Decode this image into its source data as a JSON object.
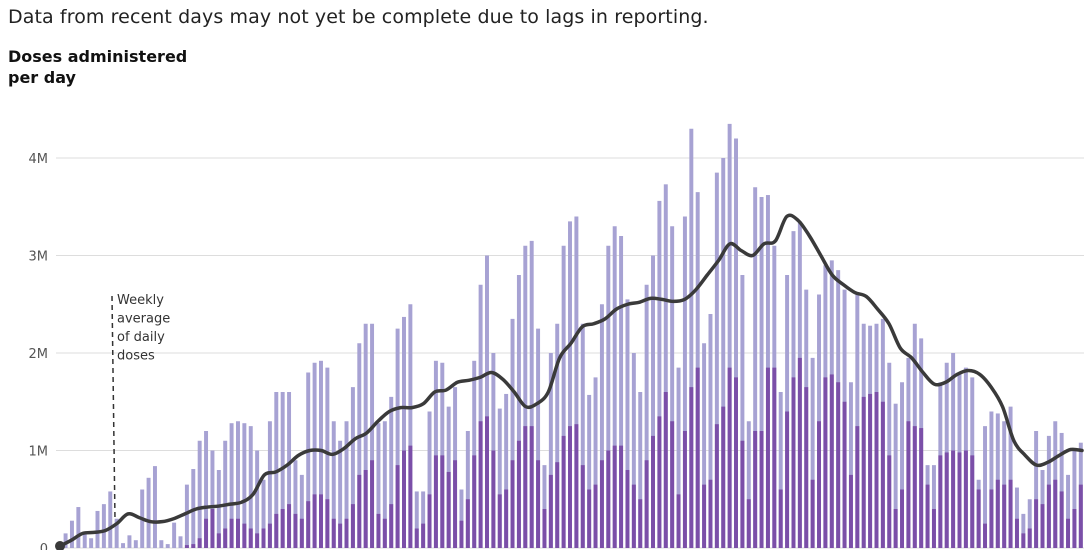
{
  "note": "Data from recent days may not yet be complete due to lags in reporting.",
  "chart_data": {
    "type": "bar",
    "ylabel": "Doses administered per day",
    "ylim": [
      0,
      4500000
    ],
    "y_ticks": [
      {
        "value": 0,
        "label": "0"
      },
      {
        "value": 1000000,
        "label": "1M"
      },
      {
        "value": 2000000,
        "label": "2M"
      },
      {
        "value": 3000000,
        "label": "3M"
      },
      {
        "value": 4000000,
        "label": "4M"
      }
    ],
    "grid": true,
    "colors": {
      "total": "#a7a2d3",
      "second": "#7b4fa8",
      "line": "#3a3a3a",
      "grid": "#dddddd"
    },
    "annotation": "Weekly average of daily doses",
    "series": [
      {
        "kind": "bar",
        "values": [
          50000,
          150000,
          280000,
          420000,
          150000,
          100000,
          380000,
          450000,
          580000,
          300000,
          50000,
          130000,
          80000,
          600000,
          720000,
          840000,
          80000,
          40000,
          260000,
          120000,
          650000,
          810000,
          1100000,
          1200000,
          1000000,
          800000,
          1100000,
          1280000,
          1300000,
          1280000,
          1250000,
          1000000,
          700000,
          1300000,
          1600000,
          1600000,
          1600000,
          900000,
          750000,
          1800000,
          1900000,
          1920000,
          1850000,
          1300000,
          1100000,
          1300000,
          1650000,
          2100000,
          2300000,
          2300000,
          1280000,
          1300000,
          1550000,
          2250000,
          2370000,
          2500000,
          580000,
          580000,
          1400000,
          1920000,
          1900000,
          1450000,
          1650000,
          600000,
          1200000,
          1920000,
          2700000,
          3000000,
          2000000,
          1430000,
          1580000,
          2350000,
          2800000,
          3100000,
          3150000,
          2250000,
          850000,
          2000000,
          2300000,
          3100000,
          3350000,
          3400000,
          2300000,
          1570000,
          1750000,
          2500000,
          3100000,
          3300000,
          3200000,
          2550000,
          2000000,
          1600000,
          2700000,
          3000000,
          3560000,
          3730000,
          3300000,
          1850000,
          3400000,
          4300000,
          3650000,
          2100000,
          2400000,
          3850000,
          4000000,
          4350000,
          4200000,
          2800000,
          1300000,
          3700000,
          3600000,
          3620000,
          3100000,
          1600000,
          2800000,
          3250000,
          3350000,
          2650000,
          1950000,
          2600000,
          2900000,
          2950000,
          2850000,
          2650000,
          1700000,
          2600000,
          2300000,
          2280000,
          2300000,
          2350000,
          1900000,
          1480000,
          1700000,
          1950000,
          2300000,
          2150000,
          850000,
          850000,
          1700000,
          1900000,
          2000000,
          1800000,
          1850000,
          1750000,
          700000,
          1250000,
          1400000,
          1380000,
          1300000,
          1450000,
          620000,
          350000,
          500000,
          1200000,
          800000,
          1150000,
          1300000,
          1180000,
          750000,
          1000000,
          1080000
        ]
      },
      {
        "kind": "bar",
        "values": [
          0,
          0,
          0,
          0,
          0,
          0,
          0,
          0,
          0,
          0,
          0,
          0,
          0,
          0,
          0,
          0,
          0,
          0,
          0,
          0,
          30000,
          40000,
          100000,
          300000,
          400000,
          150000,
          200000,
          300000,
          300000,
          250000,
          200000,
          150000,
          200000,
          250000,
          350000,
          400000,
          450000,
          350000,
          300000,
          480000,
          550000,
          550000,
          500000,
          300000,
          250000,
          300000,
          450000,
          750000,
          800000,
          900000,
          350000,
          300000,
          450000,
          850000,
          1000000,
          1050000,
          200000,
          250000,
          550000,
          950000,
          950000,
          780000,
          900000,
          280000,
          500000,
          950000,
          1300000,
          1350000,
          1000000,
          550000,
          600000,
          900000,
          1100000,
          1250000,
          1250000,
          900000,
          400000,
          750000,
          880000,
          1150000,
          1250000,
          1270000,
          850000,
          600000,
          650000,
          900000,
          1000000,
          1050000,
          1050000,
          800000,
          650000,
          500000,
          900000,
          1150000,
          1350000,
          1600000,
          1300000,
          550000,
          1200000,
          1650000,
          1850000,
          650000,
          700000,
          1270000,
          1450000,
          1850000,
          1750000,
          1100000,
          500000,
          1200000,
          1200000,
          1850000,
          1850000,
          600000,
          1400000,
          1750000,
          1950000,
          1650000,
          700000,
          1300000,
          1750000,
          1780000,
          1700000,
          1500000,
          750000,
          1250000,
          1550000,
          1580000,
          1600000,
          1500000,
          950000,
          400000,
          600000,
          1300000,
          1250000,
          1230000,
          650000,
          400000,
          950000,
          980000,
          1000000,
          980000,
          1000000,
          950000,
          600000,
          250000,
          600000,
          700000,
          650000,
          700000,
          300000,
          150000,
          200000,
          500000,
          450000,
          650000,
          700000,
          580000,
          300000,
          400000,
          650000
        ]
      },
      {
        "kind": "line",
        "values": [
          20000,
          80000,
          150000,
          160000,
          180000,
          250000,
          350000,
          310000,
          270000,
          270000,
          300000,
          350000,
          400000,
          420000,
          430000,
          450000,
          470000,
          550000,
          750000,
          780000,
          850000,
          950000,
          1000000,
          1000000,
          960000,
          1020000,
          1120000,
          1180000,
          1300000,
          1400000,
          1440000,
          1440000,
          1480000,
          1600000,
          1620000,
          1700000,
          1720000,
          1750000,
          1800000,
          1730000,
          1600000,
          1450000,
          1480000,
          1600000,
          1950000,
          2100000,
          2270000,
          2300000,
          2350000,
          2450000,
          2500000,
          2520000,
          2560000,
          2550000,
          2530000,
          2550000,
          2650000,
          2800000,
          2950000,
          3120000,
          3050000,
          3000000,
          3120000,
          3150000,
          3400000,
          3360000,
          3200000,
          3000000,
          2800000,
          2700000,
          2620000,
          2580000,
          2450000,
          2300000,
          2050000,
          1950000,
          1800000,
          1680000,
          1700000,
          1780000,
          1820000,
          1780000,
          1650000,
          1450000,
          1100000,
          950000,
          850000,
          880000,
          950000,
          1010000,
          1000000
        ]
      }
    ]
  }
}
